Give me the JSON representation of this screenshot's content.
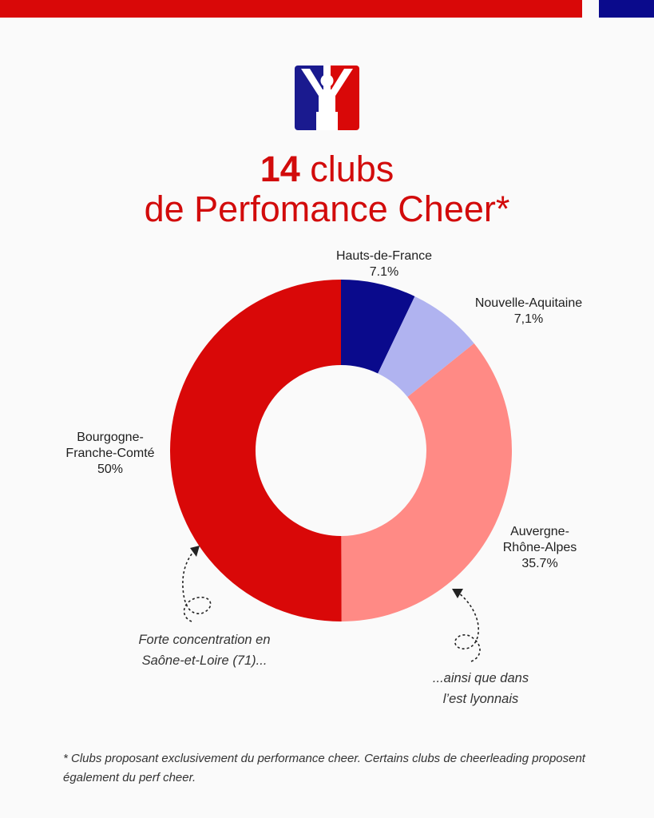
{
  "header": {
    "title_number": "14",
    "title_rest": " clubs",
    "title_line2": "de Perfomance Cheer*"
  },
  "colors": {
    "red": "#d90808",
    "navy": "#0a0a8c",
    "lavender": "#b0b3f0",
    "salmon": "#ff8a85"
  },
  "chart_data": {
    "type": "pie",
    "variant": "donut",
    "title": "14 clubs de Perfomance Cheer*",
    "slices": [
      {
        "name_lines": [
          "Hauts-de-France"
        ],
        "value": 7.1,
        "label": "7.1%",
        "color": "#0a0a8c"
      },
      {
        "name_lines": [
          "Nouvelle-Aquitaine"
        ],
        "value": 7.1,
        "label": "7,1%",
        "color": "#b0b3f0"
      },
      {
        "name_lines": [
          "Auvergne-",
          "Rhône-Alpes"
        ],
        "value": 35.7,
        "label": "35.7%",
        "color": "#ff8a85"
      },
      {
        "name_lines": [
          "Bourgogne-",
          "Franche-Comté"
        ],
        "value": 50,
        "label": "50%",
        "color": "#d90808"
      }
    ],
    "annotations": [
      {
        "lines": [
          "Forte concentration en",
          "Saône-et-Loire (71)..."
        ]
      },
      {
        "lines": [
          "...ainsi que dans",
          "l’est lyonnais"
        ]
      }
    ]
  },
  "footnote": "* Clubs proposant exclusivement du performance cheer. Certains clubs de cheerleading proposent également du perf cheer."
}
